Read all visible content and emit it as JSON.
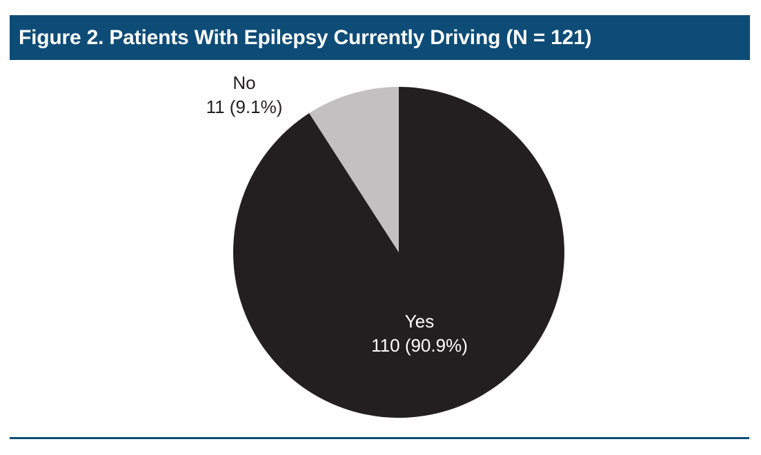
{
  "figure": {
    "title": "Figure 2. Patients With Epilepsy Currently Driving (N = 121)"
  },
  "chart_data": {
    "type": "pie",
    "title": "Figure 2. Patients With Epilepsy Currently Driving (N = 121)",
    "n_total": 121,
    "start_angle_deg": 0,
    "direction": "clockwise",
    "legend": "none",
    "slices": [
      {
        "label": "Yes",
        "count": 110,
        "percent": 90.9,
        "value_text": "110 (90.9%)",
        "color": "#231f20",
        "label_color": "#ffffff",
        "label_position": "inside"
      },
      {
        "label": "No",
        "count": 11,
        "percent": 9.1,
        "value_text": "11 (9.1%)",
        "color": "#c2c0c1",
        "label_color": "#231f20",
        "label_position": "outside-top-left"
      }
    ]
  },
  "colors": {
    "header_bg": "#0d4c77",
    "header_text": "#ffffff",
    "rule": "#0d4c77",
    "background": "#ffffff",
    "slice_yes": "#231f20",
    "slice_no": "#c2c0c1"
  }
}
